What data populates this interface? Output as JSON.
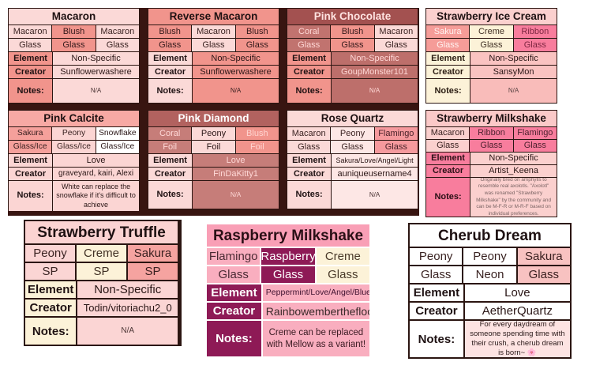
{
  "labels": {
    "element": "Element",
    "creator": "Creator",
    "notes": "Notes:"
  },
  "backdrop_color": "#381511",
  "tables": [
    {
      "id": "macaron",
      "title": "Macaron",
      "title_style": {
        "bg": "#fbd9d7",
        "fg": "#1e1112"
      },
      "label_style": {
        "bg": "#f1948c",
        "fg": "#1e1112"
      },
      "grid": [
        [
          {
            "t": "Macaron",
            "bg": "#fbd9d7",
            "fg": "#3a2322"
          },
          {
            "t": "Blush",
            "bg": "#f1948c",
            "fg": "#33191a"
          },
          {
            "t": "Macaron",
            "bg": "#fbd9d7",
            "fg": "#3a2322"
          }
        ],
        [
          {
            "t": "Glass",
            "bg": "#fbd9d7",
            "fg": "#3a2322"
          },
          {
            "t": "Glass",
            "bg": "#f1948c",
            "fg": "#33191a"
          },
          {
            "t": "Glass",
            "bg": "#fbd9d7",
            "fg": "#3a2322"
          }
        ]
      ],
      "element": {
        "t": "Non-Specific",
        "bg": "#fbd9d7",
        "fg": "#2a1616"
      },
      "creator": {
        "t": "Sunflowerwashere",
        "bg": "#fbd9d7",
        "fg": "#2a1616"
      },
      "notes": {
        "t": "N/A",
        "bg": "#fbd9d7",
        "fg": "#4a3434"
      }
    },
    {
      "id": "reverse-macaron",
      "title": "Reverse Macaron",
      "title_style": {
        "bg": "#f1948c",
        "fg": "#1e1112"
      },
      "label_style": {
        "bg": "#fbd9d7",
        "fg": "#1e1112"
      },
      "grid": [
        [
          {
            "t": "Blush",
            "bg": "#f1948c",
            "fg": "#33191a"
          },
          {
            "t": "Macaron",
            "bg": "#fbd9d7",
            "fg": "#3a2322"
          },
          {
            "t": "Blush",
            "bg": "#f1948c",
            "fg": "#33191a"
          }
        ],
        [
          {
            "t": "Glass",
            "bg": "#f1948c",
            "fg": "#33191a"
          },
          {
            "t": "Glass",
            "bg": "#fbd9d7",
            "fg": "#3a2322"
          },
          {
            "t": "Glass",
            "bg": "#f1948c",
            "fg": "#33191a"
          }
        ]
      ],
      "element": {
        "t": "Non-Specific",
        "bg": "#f1948c",
        "fg": "#2a1616"
      },
      "creator": {
        "t": "Sunflowerwashere",
        "bg": "#f1948c",
        "fg": "#2a1616"
      },
      "notes": {
        "t": "N/A",
        "bg": "#f1948c",
        "fg": "#3a2020"
      }
    },
    {
      "id": "pink-chocolate",
      "title": "Pink Chocolate",
      "title_style": {
        "bg": "#a35150",
        "fg": "#ffe3e1"
      },
      "label_style": {
        "bg": "#f1948c",
        "fg": "#1e1112"
      },
      "grid": [
        [
          {
            "t": "Coral",
            "bg": "#c1736f",
            "fg": "#ffd8d6"
          },
          {
            "t": "Blush",
            "bg": "#f1948c",
            "fg": "#33191a"
          },
          {
            "t": "Macaron",
            "bg": "#fbd9d7",
            "fg": "#3a2322"
          }
        ],
        [
          {
            "t": "Glass",
            "bg": "#c1736f",
            "fg": "#ffd8d6"
          },
          {
            "t": "Glass",
            "bg": "#f1948c",
            "fg": "#33191a"
          },
          {
            "t": "Glass",
            "bg": "#fbd9d7",
            "fg": "#3a2322"
          }
        ]
      ],
      "element": {
        "t": "Non-Specific",
        "bg": "#bd6f6b",
        "fg": "#ffd8d6"
      },
      "creator": {
        "t": "GoupMonster101",
        "bg": "#bd6f6b",
        "fg": "#ffd8d6"
      },
      "notes": {
        "t": "N/A",
        "bg": "#bd6f6b",
        "fg": "#ffd8d6"
      }
    },
    {
      "id": "strawberry-ice-cream",
      "title": "Strawberry Ice Cream",
      "title_style": {
        "bg": "#fbd0ce",
        "fg": "#1e1112"
      },
      "label_style": {
        "bg": "#fcf2d8",
        "fg": "#2a1c12"
      },
      "grid": [
        [
          {
            "t": "Sakura",
            "bg": "#f59c98",
            "fg": "#fff3f1"
          },
          {
            "t": "Creme",
            "bg": "#fcf2d8",
            "fg": "#403024"
          },
          {
            "t": "Ribbon",
            "bg": "#f87d9d",
            "fg": "#7e2742"
          }
        ],
        [
          {
            "t": "Glass",
            "bg": "#f59c98",
            "fg": "#fff3f1"
          },
          {
            "t": "Glass",
            "bg": "#fcf2d8",
            "fg": "#403024"
          },
          {
            "t": "Glass",
            "bg": "#f87d9d",
            "fg": "#7e2742"
          }
        ]
      ],
      "element": {
        "t": "Non-Specific",
        "bg": "#fac3c1",
        "fg": "#2a1616"
      },
      "creator": {
        "t": "SansyMon",
        "bg": "#fac3c1",
        "fg": "#2a1616"
      },
      "notes": {
        "t": "N/A",
        "bg": "#f9bcba",
        "fg": "#5a4444"
      }
    },
    {
      "id": "pink-calcite",
      "title": "Pink Calcite",
      "title_style": {
        "bg": "#f7a9a4",
        "fg": "#1e1112"
      },
      "label_style": {
        "bg": "#fbd5d3",
        "fg": "#1e1112"
      },
      "grid": [
        [
          {
            "t": "Sakura",
            "bg": "#f5a09b",
            "fg": "#3a2020"
          },
          {
            "t": "Peony",
            "bg": "#fbd5d3",
            "fg": "#3a2322"
          },
          {
            "t": "Snowflake",
            "bg": "#ffffff",
            "fg": "#2a1616"
          }
        ],
        [
          {
            "t": "Glass/Ice",
            "bg": "#f5a09b",
            "fg": "#3a2020"
          },
          {
            "t": "Glass/Ice",
            "bg": "#fbd5d3",
            "fg": "#3a2322"
          },
          {
            "t": "Glass/Ice",
            "bg": "#ffffff",
            "fg": "#2a1616"
          }
        ]
      ],
      "element": {
        "t": "Love",
        "bg": "#fbd5d3",
        "fg": "#2a1616"
      },
      "creator": {
        "t": "graveyard, kairi, Alexi",
        "bg": "#fbd5d3",
        "fg": "#2a1616"
      },
      "notes": {
        "t": "White can replace the snowflake if it's difficult to achieve",
        "bg": "#fbd5d3",
        "fg": "#2a1616"
      }
    },
    {
      "id": "pink-diamond",
      "title": "Pink Diamond",
      "title_style": {
        "bg": "#b2625f",
        "fg": "#ffffff"
      },
      "label_style": {
        "bg": "#fbd9d7",
        "fg": "#1e1112"
      },
      "grid": [
        [
          {
            "t": "Coral",
            "bg": "#c67d79",
            "fg": "#ffd8d6"
          },
          {
            "t": "Peony",
            "bg": "#fbd9d7",
            "fg": "#2a1616"
          },
          {
            "t": "Blush",
            "bg": "#f1948c",
            "fg": "#ffd4d0"
          }
        ],
        [
          {
            "t": "Foil",
            "bg": "#c67d79",
            "fg": "#ffd8d6"
          },
          {
            "t": "Foil",
            "bg": "#fbd9d7",
            "fg": "#2a1616"
          },
          {
            "t": "Foil",
            "bg": "#f1948c",
            "fg": "#ffd4d0"
          }
        ]
      ],
      "element": {
        "t": "Love",
        "bg": "#c67d79",
        "fg": "#ffd8d6"
      },
      "creator": {
        "t": "FinDaKitty1",
        "bg": "#c67d79",
        "fg": "#ffd8d6"
      },
      "notes": {
        "t": "N/A",
        "bg": "#c67d79",
        "fg": "#ffd8d6"
      }
    },
    {
      "id": "rose-quartz",
      "title": "Rose Quartz",
      "title_style": {
        "bg": "#fbd9d7",
        "fg": "#1e1112"
      },
      "label_style": {
        "bg": "#fbd9d7",
        "fg": "#1e1112"
      },
      "grid": [
        [
          {
            "t": "Macaron",
            "bg": "#fbd9d7",
            "fg": "#3a2322"
          },
          {
            "t": "Peony",
            "bg": "#fde7e5",
            "fg": "#3a2322"
          },
          {
            "t": "Flamingo",
            "bg": "#f5999d",
            "fg": "#4a2229"
          }
        ],
        [
          {
            "t": "Glass",
            "bg": "#fbd9d7",
            "fg": "#3a2322"
          },
          {
            "t": "Glass",
            "bg": "#fde7e5",
            "fg": "#3a2322"
          },
          {
            "t": "Glass",
            "bg": "#f5999d",
            "fg": "#4a2229"
          }
        ]
      ],
      "element": {
        "t": "Sakura/Love/Angel/Light",
        "bg": "#fde7e5",
        "fg": "#2a1616"
      },
      "creator": {
        "t": "auniqueusername4",
        "bg": "#fde7e5",
        "fg": "#2a1616"
      },
      "notes": {
        "t": "N/A",
        "bg": "#fde7e5",
        "fg": "#4a3434"
      }
    },
    {
      "id": "strawberry-milkshake",
      "title": "Strawberry Milkshake",
      "title_style": {
        "bg": "#fbc9c8",
        "fg": "#1e1112"
      },
      "label_style": {
        "bg": "#f87d9d",
        "fg": "#2a1016"
      },
      "grid": [
        [
          {
            "t": "Macaron",
            "bg": "#fbd0ce",
            "fg": "#3a2322"
          },
          {
            "t": "Ribbon",
            "bg": "#f87d9d",
            "fg": "#4f2230"
          },
          {
            "t": "Flamingo",
            "bg": "#f87d9d",
            "fg": "#4f2230"
          }
        ],
        [
          {
            "t": "Glass",
            "bg": "#fbd0ce",
            "fg": "#3a2322"
          },
          {
            "t": "Glass",
            "bg": "#f87d9d",
            "fg": "#4f2230"
          },
          {
            "t": "Glass",
            "bg": "#f87d9d",
            "fg": "#4f2230"
          }
        ]
      ],
      "element": {
        "t": "Non-Specific",
        "bg": "#fbd0ce",
        "fg": "#2a1616"
      },
      "creator": {
        "t": "Artist_Keena",
        "bg": "#fbd0ce",
        "fg": "#2a1616"
      },
      "notes": {
        "t": "Originally bred on amphylls to resemble real axolotls. \"Axolotl\" was renamed \"Strawberry Milkshake\" by the community and can be M-F-R or M-R-F based on individual preferences.",
        "bg": "#fbd0ce",
        "fg": "#7a6464"
      }
    },
    {
      "id": "strawberry-truffle",
      "title": "Strawberry Truffle",
      "title_style": {
        "bg": "#fbd3d2",
        "fg": "#1e1112"
      },
      "label_style": {
        "bg": "#fcf2d8",
        "fg": "#1e1112"
      },
      "grid": [
        [
          {
            "t": "Peony",
            "bg": "#fbd5d4",
            "fg": "#3a2322"
          },
          {
            "t": "Creme",
            "bg": "#fcf2d8",
            "fg": "#403024"
          },
          {
            "t": "Sakura",
            "bg": "#f5a3a0",
            "fg": "#3a2020"
          }
        ],
        [
          {
            "t": "SP",
            "bg": "#fbd5d4",
            "fg": "#3a2322"
          },
          {
            "t": "SP",
            "bg": "#fcf2d8",
            "fg": "#403024"
          },
          {
            "t": "SP",
            "bg": "#f5a3a0",
            "fg": "#3a2020"
          }
        ]
      ],
      "element": {
        "t": "Non-Specific",
        "bg": "#fbd5d4",
        "fg": "#2a1616"
      },
      "creator": {
        "t": "Todin/vitoriachu2_0",
        "bg": "#fbd5d4",
        "fg": "#2a1616"
      },
      "notes": {
        "t": "N/A",
        "bg": "#fbd5d4",
        "fg": "#4a3434"
      }
    },
    {
      "id": "raspberry-milkshake",
      "title": "Raspberry Milkshake",
      "title_style": {
        "bg": "#f99fb6",
        "fg": "#2a1016"
      },
      "label_style": {
        "bg": "#8e1a56",
        "fg": "#ffffff"
      },
      "grid": [
        [
          {
            "t": "Flamingo",
            "bg": "#f9aebf",
            "fg": "#4a2a33"
          },
          {
            "t": "Raspberry",
            "bg": "#8e1a56",
            "fg": "#ffffff"
          },
          {
            "t": "Creme",
            "bg": "#fcf2d8",
            "fg": "#4a3a2a"
          }
        ],
        [
          {
            "t": "Glass",
            "bg": "#f9aebf",
            "fg": "#4a2a33"
          },
          {
            "t": "Glass",
            "bg": "#8e1a56",
            "fg": "#ffffff"
          },
          {
            "t": "Glass",
            "bg": "#fcf2d8",
            "fg": "#4a3a2a"
          }
        ]
      ],
      "element": {
        "t": "Peppermint/Love/Angel/Bluef",
        "bg": "#f9aebf",
        "fg": "#3f1230"
      },
      "creator": {
        "t": "Rainbowemberthefloo",
        "bg": "#f9aebf",
        "fg": "#3a2a2a"
      },
      "notes": {
        "t": "Creme can be replaced with Mellow as a variant!",
        "bg": "#f9aebf",
        "fg": "#3a1a22"
      }
    },
    {
      "id": "cherub-dream",
      "title": "Cherub Dream",
      "title_style": {
        "bg": "#ffffff",
        "fg": "#1e1112"
      },
      "label_style": {
        "bg": "#ffffff",
        "fg": "#1e1112"
      },
      "grid": [
        [
          {
            "t": "Peony",
            "bg": "#ffffff",
            "fg": "#3a2322"
          },
          {
            "t": "Peony",
            "bg": "#ffffff",
            "fg": "#3a2322"
          },
          {
            "t": "Sakura",
            "bg": "#f8c2c1",
            "fg": "#3a2020"
          }
        ],
        [
          {
            "t": "Glass",
            "bg": "#ffffff",
            "fg": "#3a2322"
          },
          {
            "t": "Neon",
            "bg": "#ffffff",
            "fg": "#3a2322"
          },
          {
            "t": "Glass",
            "bg": "#f8c2c1",
            "fg": "#3a2020"
          }
        ]
      ],
      "element": {
        "t": "Love",
        "bg": "#ffffff",
        "fg": "#2a1616"
      },
      "creator": {
        "t": "AetherQuartz",
        "bg": "#ffffff",
        "fg": "#2a1616"
      },
      "notes": {
        "t": "For every daydream of someone spending time with their crush, a cherub dream is born~ 🌸",
        "bg": "#fde3e2",
        "fg": "#2a1a1a"
      }
    }
  ]
}
